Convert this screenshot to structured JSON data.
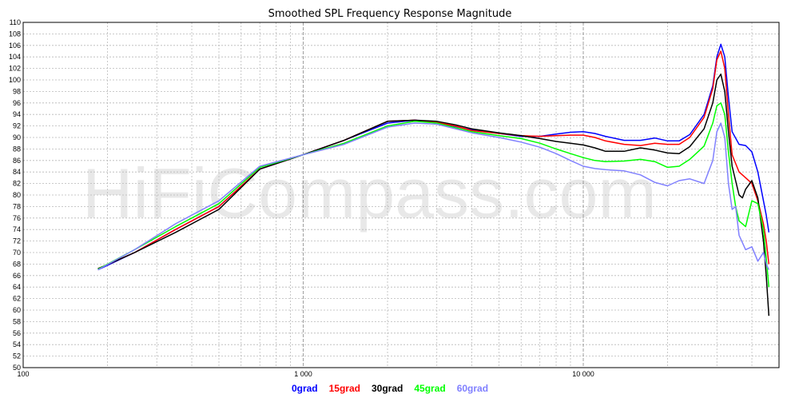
{
  "chart_data": {
    "type": "line",
    "title": "Smoothed SPL Frequency Response Magnitude",
    "watermark": "HiFiCompass.com",
    "x_scale": "log",
    "xlim": [
      100,
      50000
    ],
    "ylim": [
      50,
      110
    ],
    "x_ticks": [
      {
        "value": 100,
        "label": "100"
      },
      {
        "value": 1000,
        "label": "1 000"
      },
      {
        "value": 10000,
        "label": "10 000"
      }
    ],
    "y_ticks": [
      50,
      52,
      54,
      56,
      58,
      60,
      62,
      64,
      66,
      68,
      70,
      72,
      74,
      76,
      78,
      80,
      82,
      84,
      86,
      88,
      90,
      92,
      94,
      96,
      98,
      100,
      102,
      104,
      106,
      108,
      110
    ],
    "grid": true,
    "legend_position": "bottom-center",
    "series": [
      {
        "name": "0grad",
        "color": "#0000ff",
        "x": [
          185,
          250,
          350,
          500,
          700,
          1000,
          1400,
          2000,
          2500,
          3000,
          3500,
          4000,
          5000,
          6000,
          7000,
          8000,
          9000,
          10000,
          11000,
          12000,
          14000,
          16000,
          18000,
          20000,
          22000,
          24000,
          27000,
          29000,
          30000,
          31000,
          32000,
          33000,
          34000,
          36000,
          38000,
          40000,
          42000,
          44000,
          45000,
          46000
        ],
        "y": [
          67.0,
          70.0,
          74.0,
          78.0,
          84.5,
          87.0,
          89.5,
          92.5,
          93.0,
          92.6,
          91.9,
          91.3,
          90.7,
          90.2,
          90.2,
          90.6,
          90.9,
          91.0,
          90.7,
          90.2,
          89.5,
          89.5,
          89.9,
          89.4,
          89.4,
          90.5,
          94.0,
          99.0,
          104.0,
          106.2,
          104.0,
          97.0,
          91.0,
          88.8,
          88.6,
          87.5,
          84.0,
          79.0,
          76.5,
          73.5
        ]
      },
      {
        "name": "15grad",
        "color": "#ff0000",
        "x": [
          185,
          250,
          350,
          500,
          700,
          1000,
          1400,
          2000,
          2500,
          3000,
          3500,
          4000,
          5000,
          6000,
          7000,
          8000,
          9000,
          10000,
          11000,
          12000,
          14000,
          16000,
          18000,
          20000,
          22000,
          24000,
          27000,
          29000,
          30000,
          31000,
          32000,
          33000,
          34000,
          36000,
          38000,
          40000,
          42000,
          44000,
          45000,
          46000
        ],
        "y": [
          67.2,
          70.0,
          74.0,
          78.0,
          84.5,
          87.0,
          89.5,
          92.8,
          93.0,
          92.6,
          92.0,
          91.2,
          90.7,
          90.3,
          90.2,
          90.3,
          90.4,
          90.4,
          90.0,
          89.4,
          88.8,
          88.6,
          89.0,
          88.8,
          88.8,
          90.0,
          93.5,
          98.5,
          103.5,
          105.0,
          102.0,
          94.0,
          87.0,
          84.0,
          83.0,
          82.0,
          79.0,
          75.0,
          72.0,
          68.0
        ]
      },
      {
        "name": "30grad",
        "color": "#000000",
        "x": [
          185,
          250,
          350,
          500,
          700,
          1000,
          1400,
          2000,
          2500,
          3000,
          3500,
          4000,
          5000,
          6000,
          7000,
          8000,
          9000,
          10000,
          11000,
          12000,
          14000,
          16000,
          18000,
          20000,
          22000,
          24000,
          27000,
          29000,
          30000,
          31000,
          32000,
          33000,
          34000,
          36000,
          37000,
          38000,
          40000,
          42000,
          44000,
          45000,
          46000
        ],
        "y": [
          67.2,
          70.0,
          73.5,
          77.5,
          84.5,
          87.0,
          89.5,
          92.8,
          93.0,
          92.8,
          92.2,
          91.5,
          90.8,
          90.3,
          89.8,
          89.3,
          89.0,
          88.7,
          88.2,
          87.6,
          87.6,
          88.2,
          87.8,
          87.3,
          87.2,
          88.4,
          91.5,
          96.0,
          100.0,
          101.0,
          98.0,
          91.0,
          85.0,
          80.0,
          79.5,
          81.0,
          82.5,
          79.5,
          72.0,
          66.0,
          59.0
        ]
      },
      {
        "name": "45grad",
        "color": "#00ff00",
        "x": [
          185,
          250,
          350,
          500,
          700,
          1000,
          1400,
          2000,
          2500,
          3000,
          3500,
          4000,
          5000,
          6000,
          7000,
          8000,
          9000,
          10000,
          11000,
          12000,
          14000,
          16000,
          18000,
          20000,
          22000,
          24000,
          27000,
          29000,
          30000,
          31000,
          32000,
          33000,
          34000,
          35000,
          36000,
          38000,
          40000,
          42000,
          44000,
          45000,
          46000
        ],
        "y": [
          67.1,
          70.5,
          74.5,
          78.5,
          84.8,
          87.0,
          89.0,
          92.0,
          92.8,
          92.5,
          91.7,
          91.0,
          90.3,
          89.8,
          89.0,
          88.0,
          87.2,
          86.5,
          86.0,
          85.8,
          85.9,
          86.2,
          85.8,
          84.8,
          85.0,
          86.2,
          88.5,
          92.5,
          95.5,
          96.0,
          94.0,
          87.5,
          82.0,
          78.0,
          75.5,
          74.5,
          79.0,
          78.5,
          74.0,
          69.0,
          64.0
        ]
      },
      {
        "name": "60grad",
        "color": "#8080ff",
        "x": [
          185,
          250,
          350,
          500,
          700,
          1000,
          1400,
          2000,
          2500,
          3000,
          3500,
          4000,
          5000,
          6000,
          7000,
          8000,
          9000,
          10000,
          11000,
          12000,
          14000,
          16000,
          18000,
          20000,
          22000,
          24000,
          27000,
          29000,
          30000,
          31000,
          32000,
          33000,
          34000,
          35000,
          36000,
          38000,
          40000,
          42000,
          44000,
          45000,
          46000
        ],
        "y": [
          67.0,
          70.5,
          75.0,
          79.0,
          85.0,
          87.0,
          88.8,
          91.8,
          92.5,
          92.3,
          91.5,
          90.8,
          90.0,
          89.2,
          88.3,
          87.2,
          86.0,
          85.0,
          84.6,
          84.4,
          84.2,
          83.5,
          82.2,
          81.6,
          82.5,
          82.8,
          82.0,
          86.0,
          91.0,
          92.5,
          90.0,
          82.0,
          77.5,
          78.0,
          73.0,
          70.5,
          71.0,
          68.5,
          70.0,
          68.0,
          67.0
        ]
      }
    ]
  }
}
